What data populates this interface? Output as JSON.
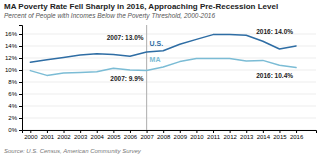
{
  "chart_data": {
    "type": "line",
    "title": "MA Poverty Rate Fell Sharply in 2016, Approaching Pre-Recession Level",
    "subtitle": "Percent of People with Incomes Below the Poverty Threshold, 2000-2016",
    "source": "Source: U.S. Census, American Community Survey",
    "x": [
      2000,
      2001,
      2002,
      2003,
      2004,
      2005,
      2006,
      2007,
      2008,
      2009,
      2010,
      2011,
      2012,
      2013,
      2014,
      2015,
      2016
    ],
    "series": [
      {
        "name": "U.S.",
        "color": "#2e6da4",
        "values": [
          11.3,
          11.7,
          12.1,
          12.5,
          12.7,
          12.6,
          12.3,
          13.0,
          13.2,
          14.3,
          15.1,
          15.9,
          15.9,
          15.8,
          14.8,
          13.5,
          14.0
        ]
      },
      {
        "name": "MA",
        "color": "#7bbcd5",
        "values": [
          9.9,
          9.1,
          9.5,
          9.6,
          9.7,
          10.3,
          10.0,
          9.9,
          10.5,
          11.4,
          11.9,
          11.9,
          11.9,
          11.5,
          11.6,
          10.8,
          10.4
        ]
      }
    ],
    "xlim": [
      1999.5,
      2017.2
    ],
    "xticks": [
      2000,
      2001,
      2002,
      2003,
      2004,
      2005,
      2006,
      2007,
      2008,
      2009,
      2010,
      2011,
      2012,
      2013,
      2014,
      2015,
      2016
    ],
    "ylim": [
      0,
      17.5
    ],
    "yticks": [
      {
        "value": 0,
        "label": "0%"
      },
      {
        "value": 2,
        "label": "2%"
      },
      {
        "value": 4,
        "label": "4%"
      },
      {
        "value": 6,
        "label": "6%"
      },
      {
        "value": 8,
        "label": "8%"
      },
      {
        "value": 10,
        "label": "10%"
      },
      {
        "value": 12,
        "label": "12%"
      },
      {
        "value": 14,
        "label": "14%"
      },
      {
        "value": 16,
        "label": "16%"
      }
    ],
    "grid": true,
    "reference_lines": [
      {
        "x": 2007,
        "color": "#b8b8b8"
      }
    ],
    "annotations": [
      {
        "text": "2007: 13.0%",
        "x": 2007,
        "y": 13.0
      },
      {
        "text": "2007: 9.9%",
        "x": 2007,
        "y": 9.9
      },
      {
        "text": "2016: 14.0%",
        "x": 2016,
        "y": 14.0
      },
      {
        "text": "2016: 10.4%",
        "x": 2016,
        "y": 10.4
      }
    ]
  }
}
